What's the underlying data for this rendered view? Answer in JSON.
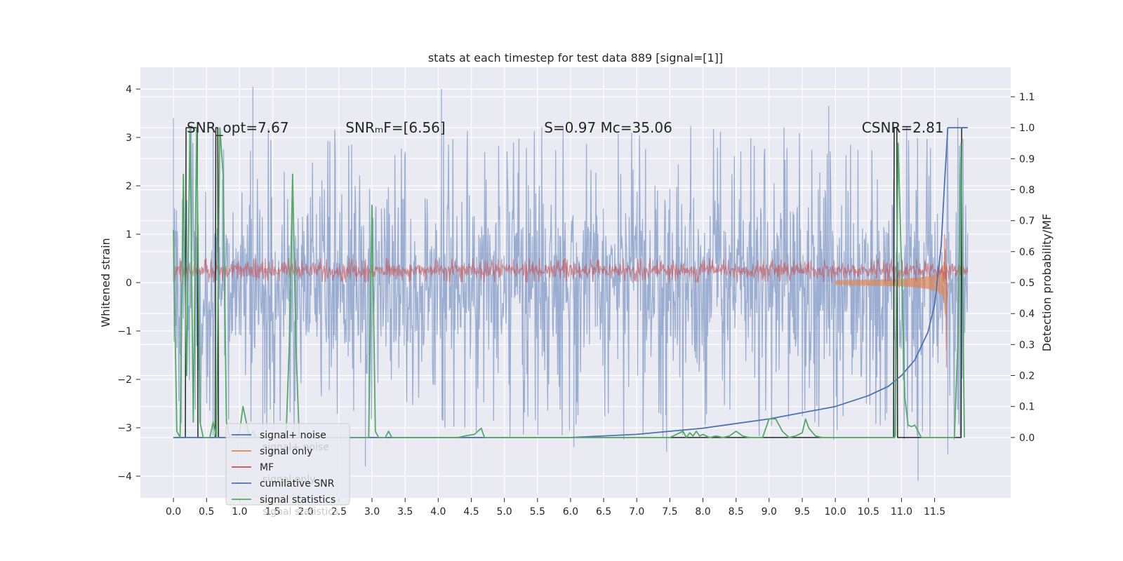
{
  "chart_data": {
    "type": "line",
    "title": "stats at each timestep for test data 889 [signal=[1]]",
    "ylabel": "Whitened strain",
    "y2label": "Detection probability/MF",
    "xlim": [
      -0.5,
      12.65
    ],
    "ylim": [
      -4.45,
      4.45
    ],
    "y2lim": [
      -0.195,
      1.195
    ],
    "x_ticks": [
      0,
      0.5,
      1,
      1.5,
      2,
      2.5,
      3,
      3.5,
      4,
      4.5,
      5,
      5.5,
      6,
      6.5,
      7,
      7.5,
      8,
      8.5,
      9,
      9.5,
      10,
      10.5,
      11,
      11.5
    ],
    "x_tick_labels": [
      "0.0",
      "0.5",
      "1.0",
      "1.5",
      "2.0",
      "2.5",
      "3.0",
      "3.5",
      "4.0",
      "4.5",
      "5.0",
      "5.5",
      "6.0",
      "6.5",
      "7.0",
      "7.5",
      "8.0",
      "8.5",
      "9.0",
      "9.5",
      "10.0",
      "10.5",
      "11.0",
      "11.5"
    ],
    "y_ticks": [
      -4,
      -3,
      -2,
      -1,
      0,
      1,
      2,
      3,
      4
    ],
    "y_tick_labels": [
      "−4",
      "−3",
      "−2",
      "−1",
      "0",
      "1",
      "2",
      "3",
      "4"
    ],
    "y2_ticks": [
      0,
      0.1,
      0.2,
      0.3,
      0.4,
      0.5,
      0.6,
      0.7,
      0.8,
      0.9,
      1.0,
      1.1
    ],
    "y2_tick_labels": [
      "0.0",
      "0.1",
      "0.2",
      "0.3",
      "0.4",
      "0.5",
      "0.6",
      "0.7",
      "0.8",
      "0.9",
      "1.0",
      "1.1"
    ],
    "annotations": [
      {
        "x": 0.2,
        "y": 3.2,
        "text": "SNR_opt=7.67"
      },
      {
        "x": 2.6,
        "y": 3.2,
        "text": "SNRₘF=[6.56]"
      },
      {
        "x": 5.6,
        "y": 3.2,
        "text": "S=0.97   Mᴄ=35.06"
      },
      {
        "x": 10.4,
        "y": 3.2,
        "text": "CSNR=2.81"
      }
    ],
    "legend_position": "lower-left",
    "series": [
      {
        "name": "signal+ noise",
        "axis": "left",
        "color": "#4c72b0",
        "style": "noise",
        "x_range": [
          0,
          12
        ],
        "envelope": [
          -2.6,
          2.6
        ],
        "peaks": [
          {
            "x": 0.0,
            "y": 3.4
          },
          {
            "x": 0.12,
            "y": -2.9
          },
          {
            "x": 0.6,
            "y": 3.3
          },
          {
            "x": 1.2,
            "y": 4.05
          },
          {
            "x": 1.35,
            "y": -3.25
          },
          {
            "x": 2.9,
            "y": -3.8
          },
          {
            "x": 4.05,
            "y": 4.0
          },
          {
            "x": 4.1,
            "y": -3.0
          },
          {
            "x": 6.05,
            "y": -3.4
          },
          {
            "x": 7.45,
            "y": -3.5
          },
          {
            "x": 9.9,
            "y": 3.65
          },
          {
            "x": 11.25,
            "y": -4.1
          },
          {
            "x": 11.7,
            "y": -3.55
          },
          {
            "x": 11.85,
            "y": 3.4
          }
        ]
      },
      {
        "name": "signal only",
        "axis": "left",
        "color": "#dd8452",
        "style": "chirp",
        "x_range": [
          10.0,
          11.75
        ],
        "merger_x": 11.68,
        "peak_amplitude": 1.6
      },
      {
        "name": "MF",
        "axis": "left",
        "color": "#c44e52",
        "style": "noise",
        "x_range": [
          0,
          12
        ],
        "envelope": [
          0.05,
          0.45
        ],
        "peaks": [
          {
            "x": 11.65,
            "y": 1.0
          },
          {
            "x": 11.68,
            "y": -1.75
          }
        ]
      },
      {
        "name": "cumilative SNR",
        "axis": "right",
        "color": "#4c72b0",
        "x": [
          0,
          4.5,
          6.0,
          7.0,
          8.0,
          9.0,
          9.5,
          10.0,
          10.5,
          10.8,
          11.0,
          11.2,
          11.4,
          11.5,
          11.6,
          11.65,
          11.7,
          12.0
        ],
        "values": [
          0.0,
          0.0,
          0.0,
          0.01,
          0.03,
          0.06,
          0.08,
          0.1,
          0.135,
          0.165,
          0.2,
          0.25,
          0.34,
          0.43,
          0.62,
          0.82,
          1.0,
          1.0
        ]
      },
      {
        "name": "signal statistics",
        "axis": "right",
        "color": "#55a868",
        "x": [
          0.0,
          0.05,
          0.1,
          0.15,
          0.2,
          0.25,
          0.3,
          0.35,
          0.4,
          0.45,
          0.5,
          0.55,
          0.6,
          0.65,
          0.7,
          0.75,
          0.8,
          0.85,
          0.9,
          0.95,
          1.0,
          1.05,
          1.1,
          1.15,
          1.2,
          1.25,
          1.3,
          1.4,
          1.5,
          1.7,
          1.75,
          1.8,
          1.85,
          1.9,
          1.95,
          2.0,
          2.2,
          2.4,
          2.6,
          2.8,
          2.95,
          3.0,
          3.05,
          3.1,
          3.2,
          3.25,
          3.3,
          3.6,
          4.0,
          4.3,
          4.4,
          4.55,
          4.65,
          4.7,
          4.8,
          5.5,
          6.5,
          7.5,
          7.7,
          7.75,
          7.8,
          7.85,
          7.9,
          7.95,
          8.0,
          8.1,
          8.2,
          8.3,
          8.4,
          8.5,
          8.6,
          8.7,
          8.8,
          8.9,
          9.0,
          9.1,
          9.2,
          9.3,
          9.4,
          9.5,
          9.55,
          9.6,
          9.7,
          9.8,
          10.0,
          10.3,
          10.5,
          10.7,
          10.85,
          10.9,
          10.95,
          11.0,
          11.05,
          11.1,
          11.15,
          11.2,
          11.25,
          11.3,
          11.4,
          11.6,
          11.8,
          11.85,
          11.9,
          11.95
        ],
        "values": [
          0.67,
          0.02,
          0.0,
          0.85,
          0.2,
          1.0,
          0.05,
          1.0,
          0.05,
          0.0,
          0.0,
          0.0,
          0.05,
          0.0,
          1.0,
          0.85,
          0.05,
          0.0,
          0.0,
          0.0,
          0.02,
          0.1,
          0.05,
          0.0,
          0.02,
          0.0,
          0.0,
          0.0,
          0.0,
          0.0,
          0.3,
          0.85,
          0.3,
          0.0,
          0.0,
          0.0,
          0.0,
          0.0,
          0.0,
          0.0,
          0.0,
          0.75,
          0.02,
          0.0,
          0.0,
          0.02,
          0.0,
          0.0,
          0.0,
          0.0,
          0.005,
          0.01,
          0.03,
          0.0,
          0.0,
          0.0,
          0.0,
          0.0,
          0.02,
          0.0,
          0.015,
          0.005,
          0.02,
          0.005,
          0.01,
          0.0,
          0.005,
          0.0,
          0.005,
          0.02,
          0.005,
          0.0,
          0.0,
          0.0,
          0.06,
          0.06,
          0.02,
          0.0,
          0.005,
          0.015,
          0.06,
          0.03,
          0.005,
          0.0,
          0.0,
          0.0,
          0.0,
          0.0,
          0.0,
          0.0,
          0.95,
          0.55,
          0.13,
          0.04,
          0.035,
          0.04,
          0.02,
          0.0,
          0.0,
          0.0,
          0.0,
          0.3,
          0.95,
          0.0
        ]
      },
      {
        "name": "",
        "axis": "right",
        "color": "#1f2a1f",
        "style": "steps",
        "x": [
          0.0,
          0.18,
          0.19,
          0.36,
          0.37,
          0.63,
          0.64,
          0.67,
          0.68,
          10.88,
          10.89,
          10.93,
          10.94,
          11.9,
          11.91,
          12.0
        ],
        "values": [
          0.0,
          0.0,
          1.0,
          1.0,
          0.0,
          0.0,
          1.0,
          1.0,
          0.0,
          0.0,
          1.0,
          1.0,
          0.0,
          0.0,
          1.0,
          1.0
        ]
      }
    ]
  },
  "legend": {
    "entries": [
      {
        "label": "signal+ noise",
        "color": "#4c72b0"
      },
      {
        "label": "signal only",
        "color": "#dd8452"
      },
      {
        "label": "MF",
        "color": "#c44e52"
      },
      {
        "label": "cumilative SNR",
        "color": "#4c72b0"
      },
      {
        "label": "signal statistics",
        "color": "#55a868"
      }
    ],
    "ghost_entries": [
      {
        "label": "signal+ noise"
      },
      {
        "label": "signal only"
      },
      {
        "label": "signal statistics"
      }
    ]
  },
  "colors": {
    "plot_background": "#eaeaf2",
    "grid": "#ffffff",
    "text": "#262626"
  }
}
